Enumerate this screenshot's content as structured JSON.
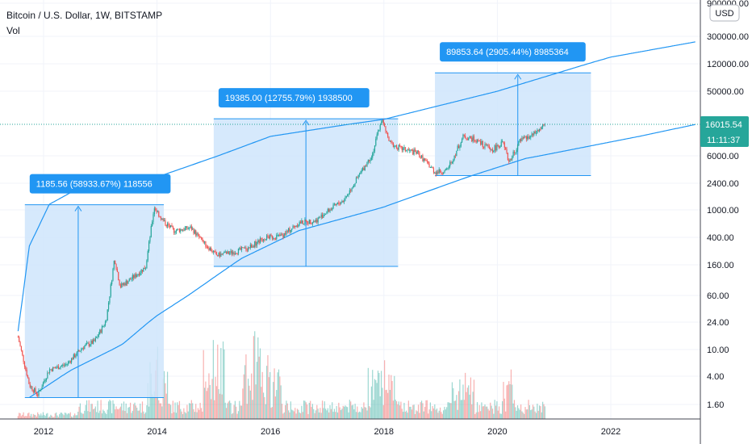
{
  "header": {
    "title": "Bitcoin / U.S. Dollar, 1W, BITSTAMP",
    "indicator": "Vol"
  },
  "currency_button": "USD",
  "price_badge": {
    "value": "16015.54",
    "countdown": "11:11:37"
  },
  "colors": {
    "up": "#26a69a",
    "down": "#ef5350",
    "box_fill": "#cfe5fb",
    "box_stroke": "#2196f3",
    "arc": "#2196f3",
    "badge": "#2196f3",
    "price_badge": "#26a69a"
  },
  "chart_data": {
    "type": "candlestick",
    "symbol": "BTCUSD",
    "interval": "1W",
    "y_scale": "log",
    "y_ticks": [
      "900000.00",
      "300000.00",
      "120000.00",
      "50000.00",
      "16015.54",
      "6000.00",
      "2400.00",
      "1000.00",
      "400.00",
      "160.00",
      "60.00",
      "24.00",
      "10.00",
      "4.00",
      "1.60"
    ],
    "y_tick_values": [
      900000,
      300000,
      120000,
      50000,
      16015.54,
      6000,
      2400,
      1000,
      400,
      160,
      60,
      24,
      10,
      4,
      1.6
    ],
    "x_ticks": [
      "2012",
      "2014",
      "2016",
      "2018",
      "2020",
      "2022"
    ],
    "x_tick_years": [
      2012,
      2014,
      2016,
      2018,
      2020,
      2022
    ],
    "price_path": [
      [
        2011.55,
        15
      ],
      [
        2011.75,
        3
      ],
      [
        2011.9,
        2.2
      ],
      [
        2012.1,
        5
      ],
      [
        2012.4,
        6
      ],
      [
        2012.7,
        11
      ],
      [
        2012.9,
        13
      ],
      [
        2013.1,
        25
      ],
      [
        2013.25,
        200
      ],
      [
        2013.35,
        80
      ],
      [
        2013.6,
        110
      ],
      [
        2013.8,
        150
      ],
      [
        2013.95,
        1100
      ],
      [
        2014.1,
        700
      ],
      [
        2014.3,
        500
      ],
      [
        2014.6,
        550
      ],
      [
        2014.8,
        350
      ],
      [
        2015.05,
        220
      ],
      [
        2015.3,
        240
      ],
      [
        2015.6,
        280
      ],
      [
        2015.9,
        400
      ],
      [
        2016.2,
        420
      ],
      [
        2016.5,
        650
      ],
      [
        2016.8,
        700
      ],
      [
        2017.0,
        950
      ],
      [
        2017.3,
        1400
      ],
      [
        2017.6,
        3500
      ],
      [
        2017.8,
        6500
      ],
      [
        2017.96,
        19000
      ],
      [
        2018.1,
        9000
      ],
      [
        2018.3,
        7500
      ],
      [
        2018.6,
        6500
      ],
      [
        2018.9,
        3500
      ],
      [
        2019.1,
        3600
      ],
      [
        2019.4,
        11000
      ],
      [
        2019.6,
        10000
      ],
      [
        2019.9,
        7200
      ],
      [
        2020.1,
        9000
      ],
      [
        2020.2,
        5000
      ],
      [
        2020.4,
        9500
      ],
      [
        2020.6,
        11000
      ],
      [
        2020.85,
        16000
      ]
    ],
    "boxes": [
      {
        "label": "1185.56 (58933.67%) 118556",
        "x_start": 2011.67,
        "x_end": 2014.12,
        "y_low": 2.0,
        "y_high": 1185.56
      },
      {
        "label": "19385.00 (12755.79%) 1938500",
        "x_start": 2015.0,
        "x_end": 2018.25,
        "y_low": 152,
        "y_high": 19385
      },
      {
        "label": "89853.64 (2905.44%) 8985364",
        "x_start": 2018.9,
        "x_end": 2021.65,
        "y_low": 3100,
        "y_high": 89853.64
      }
    ],
    "arcs": [
      {
        "name": "upper",
        "points": [
          [
            2011.55,
            18
          ],
          [
            2011.75,
            300
          ],
          [
            2012.1,
            1200
          ],
          [
            2012.6,
            2000
          ],
          [
            2013.2,
            2600
          ],
          [
            2014.0,
            2950
          ],
          [
            2016.0,
            11000
          ],
          [
            2018.0,
            19000
          ],
          [
            2020.0,
            50000
          ],
          [
            2022.0,
            150000
          ],
          [
            2023.5,
            250000
          ]
        ]
      },
      {
        "name": "lower",
        "points": [
          [
            2011.75,
            2.0
          ],
          [
            2012.5,
            5
          ],
          [
            2013.4,
            12
          ],
          [
            2014.0,
            30
          ],
          [
            2015.5,
            200
          ],
          [
            2016.5,
            500
          ],
          [
            2018.0,
            1100
          ],
          [
            2019.5,
            3000
          ],
          [
            2020.5,
            5500
          ],
          [
            2022.5,
            11000
          ],
          [
            2023.5,
            16000
          ]
        ]
      }
    ]
  }
}
